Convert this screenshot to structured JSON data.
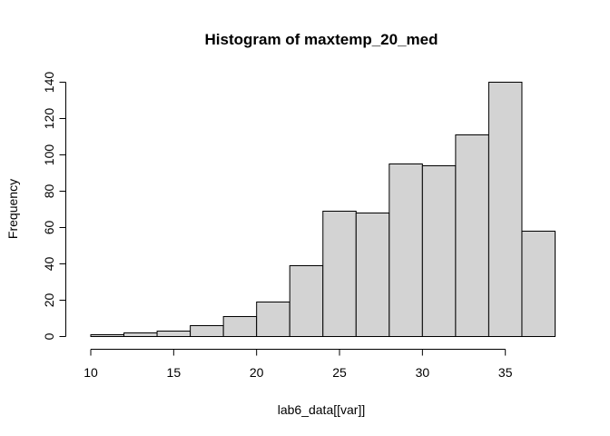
{
  "chart_data": {
    "type": "bar",
    "title": "Histogram of maxtemp_20_med",
    "xlabel": "lab6_data[[var]]",
    "ylabel": "Frequency",
    "bins": [
      {
        "from": 10,
        "to": 12,
        "count": 1
      },
      {
        "from": 12,
        "to": 14,
        "count": 2
      },
      {
        "from": 14,
        "to": 16,
        "count": 3
      },
      {
        "from": 16,
        "to": 18,
        "count": 6
      },
      {
        "from": 18,
        "to": 20,
        "count": 11
      },
      {
        "from": 20,
        "to": 22,
        "count": 19
      },
      {
        "from": 22,
        "to": 24,
        "count": 39
      },
      {
        "from": 24,
        "to": 26,
        "count": 69
      },
      {
        "from": 26,
        "to": 28,
        "count": 68
      },
      {
        "from": 28,
        "to": 30,
        "count": 95
      },
      {
        "from": 30,
        "to": 32,
        "count": 94
      },
      {
        "from": 32,
        "to": 34,
        "count": 111
      },
      {
        "from": 34,
        "to": 36,
        "count": 140
      },
      {
        "from": 36,
        "to": 38,
        "count": 58
      }
    ],
    "xticks": [
      10,
      15,
      20,
      25,
      30,
      35
    ],
    "yticks": [
      0,
      20,
      40,
      60,
      80,
      100,
      120,
      140
    ],
    "xlim": [
      10,
      38
    ],
    "ylim": [
      0,
      140
    ],
    "grid": false,
    "bar_color": "#d3d3d3"
  }
}
